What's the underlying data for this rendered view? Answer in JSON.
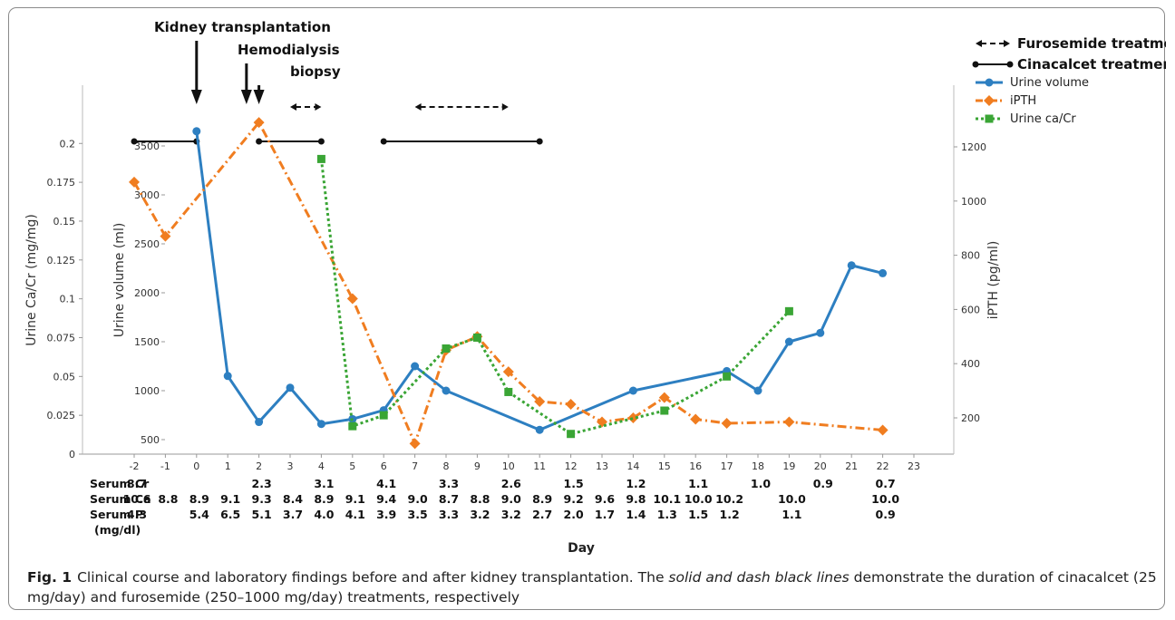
{
  "chart_data": {
    "type": "line",
    "xlabel": "Day",
    "ylabel_left_outer": "Urine Ca/Cr (mg/mg)",
    "ylabel_left_inner": "Urine volume (ml)",
    "ylabel_right": "iPTH (pg/ml)",
    "x_ticks": [
      "-2",
      "-1",
      "0",
      "1",
      "2",
      "3",
      "4",
      "5",
      "6",
      "7",
      "8",
      "9",
      "10",
      "11",
      "12",
      "13",
      "14",
      "15",
      "16",
      "17",
      "18",
      "19",
      "20",
      "21",
      "22",
      "23"
    ],
    "xlim": [
      -2,
      23
    ],
    "y_cacr": {
      "ylim": [
        0,
        0.22
      ],
      "ticks": [
        "0",
        "0.025",
        "0.05",
        "0.075",
        "0.1",
        "0.125",
        "0.15",
        "0.175",
        "0.2"
      ]
    },
    "y_volume": {
      "ylim": [
        380,
        3700
      ],
      "ticks": [
        "500",
        "1000",
        "1500",
        "2000",
        "2500",
        "3000",
        "3500"
      ]
    },
    "y_ipth": {
      "ylim": [
        0,
        1320
      ],
      "ticks": [
        "200",
        "400",
        "600",
        "800",
        "1000",
        "1200"
      ]
    },
    "series": [
      {
        "name": "Urine volume",
        "axis": "volume",
        "color": "#2d7fc1",
        "style": "solid",
        "marker": "circle",
        "x": [
          0,
          1,
          2,
          3,
          4,
          5,
          6,
          7,
          8,
          11,
          14,
          17,
          18,
          19,
          20,
          21,
          22
        ],
        "y": [
          3650,
          1150,
          680,
          1030,
          660,
          710,
          800,
          1250,
          1000,
          600,
          1000,
          1200,
          1000,
          1500,
          1590,
          2280,
          2200
        ]
      },
      {
        "name": "iPTH",
        "axis": "ipth",
        "color": "#f07d20",
        "style": "dashdot",
        "marker": "diamond",
        "x": [
          -2,
          -1,
          2,
          5,
          7,
          8,
          9,
          10,
          11,
          12,
          13,
          14,
          15,
          16,
          17,
          19,
          22
        ],
        "y": [
          1070,
          870,
          1290,
          640,
          105,
          450,
          500,
          370,
          260,
          250,
          185,
          200,
          275,
          195,
          180,
          185,
          155
        ]
      },
      {
        "name": "Urine ca/Cr",
        "axis": "cacr",
        "color": "#3aa535",
        "style": "dotted",
        "marker": "square",
        "x": [
          4,
          5,
          6,
          8,
          9,
          10,
          12,
          15,
          17,
          19
        ],
        "y": [
          0.19,
          0.018,
          0.025,
          0.068,
          0.075,
          0.04,
          0.013,
          0.028,
          0.05,
          0.092
        ]
      }
    ],
    "cinacalcet_segments": [
      [
        -2,
        0
      ],
      [
        2,
        4
      ],
      [
        6,
        11
      ]
    ],
    "furosemide_segments": [
      [
        3,
        4
      ],
      [
        7,
        10
      ]
    ],
    "events": [
      {
        "label": "Kidney transplantation",
        "day": 0
      },
      {
        "label": "Hemodialysis",
        "day": 1.6
      },
      {
        "label": "biopsy",
        "day": 2
      }
    ],
    "legend": [
      {
        "label": "Furosemide treatment",
        "kind": "furosemide"
      },
      {
        "label": "Cinacalcet treatment",
        "kind": "cinacalcet"
      },
      {
        "label": "Urine volume",
        "kind": "volume"
      },
      {
        "label": "iPTH",
        "kind": "ipth"
      },
      {
        "label": "Urine ca/Cr",
        "kind": "cacr"
      }
    ],
    "lab_table": {
      "rows": [
        {
          "label": "Serum Cr",
          "values": [
            [
              "-2",
              "8.7"
            ],
            [
              "2",
              "2.3"
            ],
            [
              "4",
              "3.1"
            ],
            [
              "6",
              "4.1"
            ],
            [
              "8",
              "3.3"
            ],
            [
              "10",
              "2.6"
            ],
            [
              "12",
              "1.5"
            ],
            [
              "14",
              "1.2"
            ],
            [
              "16",
              "1.1"
            ],
            [
              "18",
              "1.0"
            ],
            [
              "20",
              "0.9"
            ],
            [
              "22",
              "0.7"
            ]
          ]
        },
        {
          "label": "Serum Ca",
          "values": [
            [
              "-2",
              "10.6"
            ],
            [
              "-1",
              "8.8"
            ],
            [
              "0",
              "8.9"
            ],
            [
              "1",
              "9.1"
            ],
            [
              "2",
              "9.3"
            ],
            [
              "3",
              "8.4"
            ],
            [
              "4",
              "8.9"
            ],
            [
              "5",
              "9.1"
            ],
            [
              "6",
              "9.4"
            ],
            [
              "7",
              "9.0"
            ],
            [
              "8",
              "8.7"
            ],
            [
              "9",
              "8.8"
            ],
            [
              "10",
              "9.0"
            ],
            [
              "11",
              "8.9"
            ],
            [
              "12",
              "9.2"
            ],
            [
              "13",
              "9.6"
            ],
            [
              "14",
              "9.8"
            ],
            [
              "15",
              "10.1"
            ],
            [
              "16",
              "10.0"
            ],
            [
              "17",
              "10.2"
            ],
            [
              "19",
              "10.0"
            ],
            [
              "22",
              "10.0"
            ]
          ]
        },
        {
          "label": "Serum P",
          "values": [
            [
              "-2",
              "4.3"
            ],
            [
              "0",
              "5.4"
            ],
            [
              "1",
              "6.5"
            ],
            [
              "2",
              "5.1"
            ],
            [
              "3",
              "3.7"
            ],
            [
              "4",
              "4.0"
            ],
            [
              "5",
              "4.1"
            ],
            [
              "6",
              "3.9"
            ],
            [
              "7",
              "3.5"
            ],
            [
              "8",
              "3.3"
            ],
            [
              "9",
              "3.2"
            ],
            [
              "10",
              "3.2"
            ],
            [
              "11",
              "2.7"
            ],
            [
              "12",
              "2.0"
            ],
            [
              "13",
              "1.7"
            ],
            [
              "14",
              "1.4"
            ],
            [
              "15",
              "1.3"
            ],
            [
              "16",
              "1.5"
            ],
            [
              "17",
              "1.2"
            ],
            [
              "19",
              "1.1"
            ],
            [
              "22",
              "0.9"
            ]
          ]
        }
      ],
      "unit_label": "(mg/dl)"
    }
  },
  "caption": {
    "fig_label": "Fig. 1",
    "part1": "Clinical course and laboratory findings before and after kidney transplantation. The ",
    "italic": "solid and dash black lines",
    "part2": " demonstrate the duration of cinacalcet (25 mg/day) and furosemide (250–1000 mg/day) treatments, respectively"
  }
}
